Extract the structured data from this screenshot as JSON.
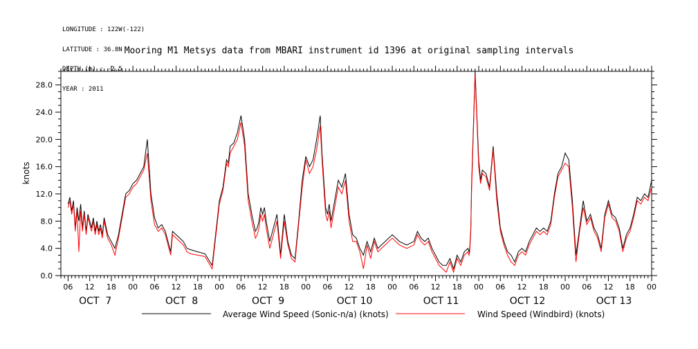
{
  "header": {
    "longitude": "LONGITUDE : 122W(-122)",
    "latitude": "LATITUDE : 36.8N",
    "depth": "DEPTH (m) : -2.5",
    "year": "YEAR : 2011"
  },
  "chart_data": {
    "type": "line",
    "title": "Mooring M1 Metsys data from MBARI instrument id 1396 at original sampling intervals",
    "ylabel": "knots",
    "xlabel": "",
    "ylim": [
      0,
      30
    ],
    "xlim_hours": [
      0,
      162
    ],
    "yticks": [
      0,
      4,
      8,
      12,
      16,
      20,
      24,
      28
    ],
    "ytick_labels": [
      "0.0",
      "4.0",
      "8.0",
      "12.0",
      "16.0",
      "20.0",
      "24.0",
      "28.0"
    ],
    "xticks_hours": [
      0,
      6,
      12,
      18,
      24,
      30,
      36,
      42,
      48,
      54,
      60,
      66,
      72,
      78,
      84,
      90,
      96,
      102,
      108,
      114,
      120,
      126,
      132,
      138,
      144,
      150,
      156,
      162
    ],
    "xtick_labels": [
      "06",
      "12",
      "18",
      "00",
      "06",
      "12",
      "18",
      "00",
      "06",
      "12",
      "18",
      "00",
      "06",
      "12",
      "18",
      "00",
      "06",
      "12",
      "18",
      "00",
      "06",
      "12",
      "18",
      "00",
      "06",
      "12",
      "18",
      "00"
    ],
    "day_labels": [
      "OCT  7",
      "OCT  8",
      "OCT  9",
      "OCT 10",
      "OCT 11",
      "OCT 12",
      "OCT 13"
    ],
    "day_label_hours": [
      6,
      30,
      54,
      78,
      102,
      126,
      150
    ],
    "legend": {
      "placement": "bottom"
    },
    "series": [
      {
        "name": "Average Wind Speed (Sonic-n/a) (knots)",
        "color": "#000000",
        "x": [
          0,
          0.5,
          1,
          1.5,
          2,
          2.5,
          3,
          3.5,
          4,
          4.5,
          5,
          5.5,
          6,
          6.5,
          7,
          7.5,
          8,
          8.5,
          9,
          9.5,
          10,
          11,
          12,
          13,
          14,
          15,
          16,
          17,
          18,
          19,
          20,
          21,
          22,
          23,
          24,
          25,
          26,
          27,
          28,
          28.5,
          29,
          30,
          31,
          32,
          33,
          34,
          36,
          38,
          40,
          42,
          43,
          44,
          44.5,
          45,
          46,
          47,
          48,
          49,
          50,
          51,
          52,
          52.5,
          53,
          53.5,
          54,
          54.5,
          55,
          56,
          57,
          58,
          59,
          60,
          61,
          62,
          63,
          64,
          65,
          66,
          67,
          68,
          69,
          70,
          70.5,
          71,
          71.5,
          72,
          72.5,
          73,
          74,
          75,
          76,
          77,
          78,
          79,
          80,
          81,
          82,
          83,
          84,
          85,
          86,
          88,
          90,
          92,
          94,
          96,
          97,
          98,
          99,
          100,
          101,
          102,
          103,
          104,
          105,
          106,
          107,
          108,
          109,
          110,
          111,
          111.3,
          111.5,
          111.8,
          112,
          113,
          114,
          114.5,
          115,
          116,
          117,
          118,
          119,
          120,
          121,
          122,
          123,
          124,
          125,
          126,
          127,
          128,
          129,
          130,
          131,
          132,
          133,
          134,
          135,
          136,
          137,
          138,
          139,
          140,
          141,
          142,
          143,
          144,
          145,
          146,
          147,
          148,
          149,
          150,
          151,
          152,
          153,
          154,
          155,
          156,
          157,
          158,
          159,
          160,
          161,
          162
        ],
        "values": [
          10.5,
          11.5,
          9.5,
          11,
          7,
          10,
          8,
          10.5,
          7,
          9.5,
          6.5,
          9,
          8,
          7,
          8.5,
          6.5,
          8,
          6.5,
          7.5,
          6,
          8.5,
          6,
          5,
          4,
          6,
          9,
          12,
          12.5,
          13.5,
          14,
          15,
          16,
          20,
          12,
          8.5,
          7,
          7.5,
          6.5,
          4.5,
          3.5,
          6.5,
          6,
          5.5,
          5,
          4,
          3.8,
          3.5,
          3.2,
          1.5,
          11,
          13,
          17,
          16.5,
          19,
          19.5,
          21,
          23.5,
          20,
          12,
          9,
          6.5,
          7,
          8,
          10,
          9,
          10,
          8,
          5,
          7,
          9,
          3,
          9,
          5,
          3,
          2.5,
          8,
          14,
          17.5,
          16,
          17,
          20,
          23.5,
          18,
          14,
          10,
          9,
          10.5,
          8,
          11,
          14,
          13,
          15,
          9,
          6,
          5.5,
          4,
          3,
          5,
          3.5,
          5.5,
          4,
          5,
          6,
          5,
          4.5,
          5,
          6.5,
          5.5,
          5,
          5.5,
          4,
          3,
          2,
          1.5,
          1.5,
          2.5,
          1,
          3,
          2,
          3.5,
          4,
          3.5,
          4,
          7,
          13,
          30,
          17,
          14,
          15.5,
          15,
          13,
          19,
          12,
          7,
          5,
          3.5,
          3,
          2,
          3.5,
          4,
          3.5,
          5,
          6,
          7,
          6.5,
          7,
          6.5,
          8,
          12,
          15,
          16,
          18,
          17,
          11,
          3,
          7,
          11,
          8,
          9,
          7,
          6,
          4,
          9,
          11,
          9,
          8.5,
          7,
          4,
          6,
          7,
          9,
          11.5,
          11,
          12,
          11.5,
          14
        ]
      },
      {
        "name": "Wind Speed (Windbird) (knots)",
        "color": "#ff0000",
        "x": [
          0,
          0.5,
          1,
          1.5,
          2,
          2.5,
          3,
          3.5,
          4,
          4.5,
          5,
          5.5,
          6,
          6.5,
          7,
          7.5,
          8,
          8.5,
          9,
          9.5,
          10,
          11,
          12,
          13,
          14,
          15,
          16,
          17,
          18,
          19,
          20,
          21,
          22,
          23,
          24,
          25,
          26,
          27,
          28,
          28.5,
          29,
          30,
          31,
          32,
          33,
          34,
          36,
          38,
          40,
          42,
          43,
          44,
          44.5,
          45,
          46,
          47,
          48,
          49,
          50,
          51,
          52,
          52.5,
          53,
          53.5,
          54,
          54.5,
          55,
          56,
          57,
          58,
          59,
          60,
          61,
          62,
          63,
          64,
          65,
          66,
          67,
          68,
          69,
          70,
          70.5,
          71,
          71.5,
          72,
          72.5,
          73,
          74,
          75,
          76,
          77,
          78,
          79,
          80,
          81,
          82,
          83,
          84,
          85,
          86,
          88,
          90,
          92,
          94,
          96,
          97,
          98,
          99,
          100,
          101,
          102,
          103,
          104,
          105,
          106,
          107,
          108,
          109,
          110,
          111,
          111.3,
          111.5,
          111.8,
          112,
          113,
          114,
          114.5,
          115,
          116,
          117,
          118,
          119,
          120,
          121,
          122,
          123,
          124,
          125,
          126,
          127,
          128,
          129,
          130,
          131,
          132,
          133,
          134,
          135,
          136,
          137,
          138,
          139,
          140,
          141,
          142,
          143,
          144,
          145,
          146,
          147,
          148,
          149,
          150,
          151,
          152,
          153,
          154,
          155,
          156,
          157,
          158,
          159,
          160,
          161,
          162
        ],
        "values": [
          10,
          11,
          9,
          10.5,
          6.5,
          9.5,
          3.5,
          9.5,
          6.5,
          9,
          6,
          8.5,
          7.5,
          6.5,
          8,
          6,
          7.5,
          6,
          7,
          5.5,
          8,
          5.5,
          4.5,
          3,
          5.5,
          8.5,
          11.5,
          12,
          13,
          13.5,
          14.5,
          15.5,
          18,
          11,
          7.5,
          6.5,
          7,
          6,
          4,
          3,
          6,
          5.5,
          5,
          4.5,
          3.5,
          3.2,
          3,
          2.8,
          1,
          10.5,
          12.5,
          16.5,
          16,
          18,
          19,
          20,
          22.5,
          19,
          11,
          8,
          5.5,
          6,
          7,
          9,
          8,
          9,
          7,
          4,
          6,
          8,
          2.5,
          8,
          4.5,
          2.5,
          2,
          7.5,
          13,
          17,
          15,
          16,
          18.5,
          22,
          17,
          13,
          9,
          8,
          9.5,
          7,
          10,
          13,
          12,
          14,
          8,
          5,
          5,
          3.5,
          1,
          4.5,
          2.5,
          5,
          3.5,
          4.5,
          5.5,
          4.5,
          4,
          4.5,
          6,
          5,
          4.5,
          5,
          3.5,
          2.5,
          1.5,
          1,
          0.5,
          2,
          0.5,
          2.5,
          1.5,
          3,
          3.5,
          3,
          3.5,
          6.5,
          12,
          29.5,
          16,
          13.5,
          15,
          14.5,
          12.5,
          18.5,
          11,
          6.5,
          4.5,
          3,
          2,
          1.5,
          3,
          3.5,
          3,
          4.5,
          5.5,
          6.5,
          6,
          6.5,
          6,
          7.5,
          11.5,
          14.5,
          15.5,
          16.5,
          16,
          10,
          2,
          6.5,
          10,
          7.5,
          8.5,
          6.5,
          5.5,
          3.5,
          8.5,
          10.5,
          8.5,
          8,
          6.5,
          3.5,
          5.5,
          6.5,
          8.5,
          11,
          10.5,
          11.5,
          11,
          13
        ]
      }
    ]
  }
}
